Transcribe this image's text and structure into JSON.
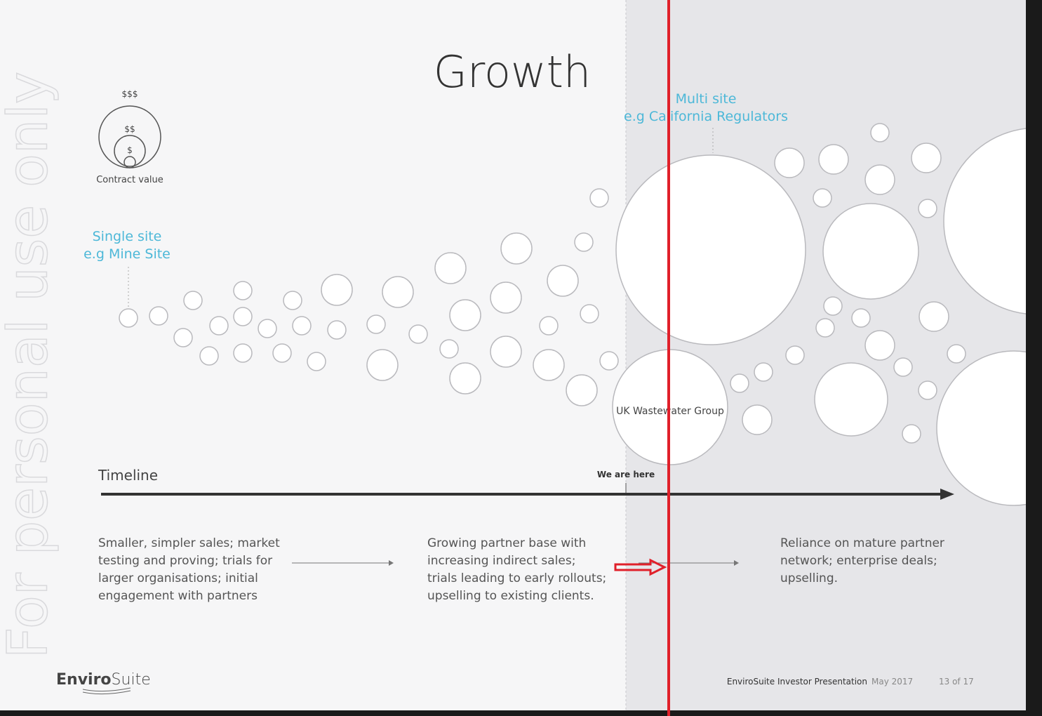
{
  "title": "Growth",
  "watermark": "For personal use only",
  "legend": {
    "large": "$$$",
    "medium": "$$",
    "small": "$",
    "caption": "Contract value"
  },
  "single_site": {
    "label": "Single site",
    "example": "e.g Mine Site"
  },
  "multi_site": {
    "label": "Multi site",
    "example": "e.g California Regulators"
  },
  "highlight": "UK Wastewater Group",
  "timeline": {
    "label": "Timeline",
    "marker": "We are here"
  },
  "columns": [
    {
      "lines": [
        "Smaller, simpler sales; market",
        "testing and proving; trials for",
        "larger organisations; initial",
        "engagement with partners"
      ]
    },
    {
      "lines": [
        "Growing partner base with",
        "increasing indirect sales;",
        "trials leading to early rollouts;",
        "upselling to existing clients."
      ]
    },
    {
      "lines": [
        "Reliance on mature partner",
        "network; enterprise deals;",
        "upselling."
      ]
    }
  ],
  "footer": {
    "brand_bold": "Enviro",
    "brand_light": "Suite",
    "presentation": "EnviroSuite Investor Presentation",
    "date": "May 2017",
    "page": "13 of 17"
  }
}
